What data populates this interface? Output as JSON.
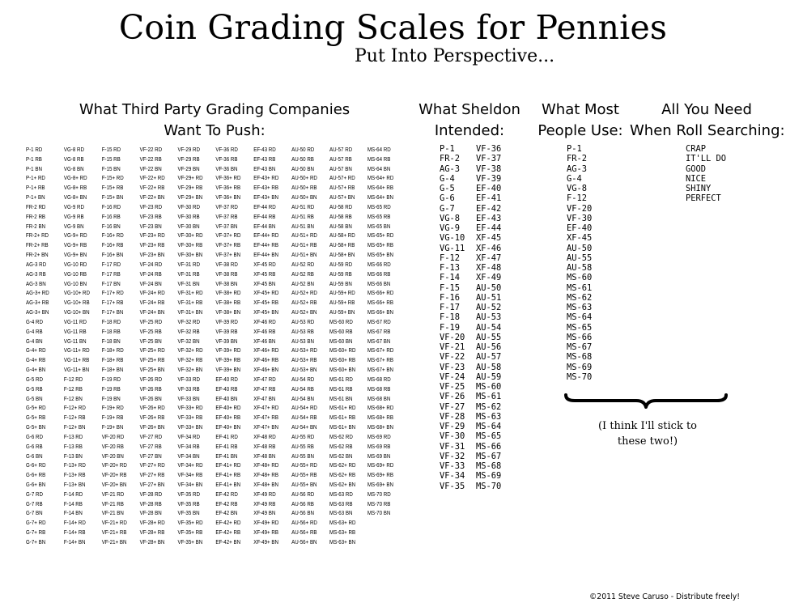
{
  "title": "Coin Grading Scales for Pennies",
  "subtitle": "Put Into Perspective...",
  "headings": {
    "tpg": [
      "What Third Party Grading Companies",
      "Want To Push:"
    ],
    "sheldon": [
      "What Sheldon",
      "Intended:"
    ],
    "most": [
      "What Most",
      "People Use:"
    ],
    "need": [
      "All You Need",
      "When Roll Searching:"
    ]
  },
  "tpg_columns": [
    [
      "P-1 RD",
      "P-1 RB",
      "P-1 BN",
      "P-1+ RD",
      "P-1+ RB",
      "P-1+ BN",
      "FR-2 RD",
      "FR-2 RB",
      "FR-2 BN",
      "FR-2+ RD",
      "FR-2+ RB",
      "FR-2+ BN",
      "AG-3 RD",
      "AG-3 RB",
      "AG-3 BN",
      "AG-3+ RD",
      "AG-3+ RB",
      "AG-3+ BN",
      "G-4 RD",
      "G-4 RB",
      "G-4 BN",
      "G-4+ RD",
      "G-4+ RB",
      "G-4+ BN",
      "G-5 RD",
      "G-5 RB",
      "G-5 BN",
      "G-5+ RD",
      "G-5+ RB",
      "G-5+ BN",
      "G-6 RD",
      "G-6 RB",
      "G-6 BN",
      "G-6+ RD",
      "G-6+ RB",
      "G-6+ BN",
      "G-7 RD",
      "G-7 RB",
      "G-7 BN",
      "G-7+ RD",
      "G-7+ RB",
      "G-7+ BN"
    ],
    [
      "VG-8 RD",
      "VG-8 RB",
      "VG-8 BN",
      "VG-8+ RD",
      "VG-8+ RB",
      "VG-8+ BN",
      "VG-9 RD",
      "VG-9 RB",
      "VG-9 BN",
      "VG-9+ RD",
      "VG-9+ RB",
      "VG-9+ BN",
      "VG-10 RD",
      "VG-10 RB",
      "VG-10 BN",
      "VG-10+ RD",
      "VG-10+ RB",
      "VG-10+ BN",
      "VG-11 RD",
      "VG-11 RB",
      "VG-11 BN",
      "VG-11+ RD",
      "VG-11+ RB",
      "VG-11+ BN",
      "F-12 RD",
      "F-12 RB",
      "F-12 BN",
      "F-12+ RD",
      "F-12+ RB",
      "F-12+ BN",
      "F-13 RD",
      "F-13 RB",
      "F-13 BN",
      "F-13+ RD",
      "F-13+ RB",
      "F-13+ BN",
      "F-14 RD",
      "F-14 RB",
      "F-14 BN",
      "F-14+ RD",
      "F-14+ RB",
      "F-14+ BN"
    ],
    [
      "F-15 RD",
      "F-15 RB",
      "F-15 BN",
      "F-15+ RD",
      "F-15+ RB",
      "F-15+ BN",
      "F-16 RD",
      "F-16 RB",
      "F-16 BN",
      "F-16+ RD",
      "F-16+ RB",
      "F-16+ BN",
      "F-17 RD",
      "F-17 RB",
      "F-17 BN",
      "F-17+ RD",
      "F-17+ RB",
      "F-17+ BN",
      "F-18 RD",
      "F-18 RB",
      "F-18 BN",
      "F-18+ RD",
      "F-18+ RB",
      "F-18+ BN",
      "F-19 RD",
      "F-19 RB",
      "F-19 BN",
      "F-19+ RD",
      "F-19+ RB",
      "F-19+ BN",
      "VF-20 RD",
      "VF-20 RB",
      "VF-20 BN",
      "VF-20+ RD",
      "VF-20+ RB",
      "VF-20+ BN",
      "VF-21 RD",
      "VF-21 RB",
      "VF-21 BN",
      "VF-21+ RD",
      "VF-21+ RB",
      "VF-21+ BN"
    ],
    [
      "VF-22 RD",
      "VF-22 RB",
      "VF-22 BN",
      "VF-22+ RD",
      "VF-22+ RB",
      "VF-22+ BN",
      "VF-23 RD",
      "VF-23 RB",
      "VF-23 BN",
      "VF-23+ RD",
      "VF-23+ RB",
      "VF-23+ BN",
      "VF-24 RD",
      "VF-24 RB",
      "VF-24 BN",
      "VF-24+ RD",
      "VF-24+ RB",
      "VF-24+ BN",
      "VF-25 RD",
      "VF-25 RB",
      "VF-25 BN",
      "VF-25+ RD",
      "VF-25+ RB",
      "VF-25+ BN",
      "VF-26 RD",
      "VF-26 RB",
      "VF-26 BN",
      "VF-26+ RD",
      "VF-26+ RB",
      "VF-26+ BN",
      "VF-27 RD",
      "VF-27 RB",
      "VF-27 BN",
      "VF-27+ RD",
      "VF-27+ RB",
      "VF-27+ BN",
      "VF-28 RD",
      "VF-28 RB",
      "VF-28 BN",
      "VF-28+ RD",
      "VF-28+ RB",
      "VF-28+ BN"
    ],
    [
      "VF-29 RD",
      "VF-29 RB",
      "VF-29 BN",
      "VF-29+ RD",
      "VF-29+ RB",
      "VF-29+ BN",
      "VF-30 RD",
      "VF-30 RB",
      "VF-30 BN",
      "VF-30+ RD",
      "VF-30+ RB",
      "VF-30+ BN",
      "VF-31 RD",
      "VF-31 RB",
      "VF-31 BN",
      "VF-31+ RD",
      "VF-31+ RB",
      "VF-31+ BN",
      "VF-32 RD",
      "VF-32 RB",
      "VF-32 BN",
      "VF-32+ RD",
      "VF-32+ RB",
      "VF-32+ BN",
      "VF-33 RD",
      "VF-33 RB",
      "VF-33 BN",
      "VF-33+ RD",
      "VF-33+ RB",
      "VF-33+ BN",
      "VF-34 RD",
      "VF-34 RB",
      "VF-34 BN",
      "VF-34+ RD",
      "VF-34+ RB",
      "VF-34+ BN",
      "VF-35 RD",
      "VF-35 RB",
      "VF-35 BN",
      "VF-35+ RD",
      "VF-35+ RB",
      "VF-35+ BN"
    ],
    [
      "VF-36 RD",
      "VF-36 RB",
      "VF-36 BN",
      "VF-36+ RD",
      "VF-36+ RB",
      "VF-36+ BN",
      "VF-37 RD",
      "VF-37 RB",
      "VF-37 BN",
      "VF-37+ RD",
      "VF-37+ RB",
      "VF-37+ BN",
      "VF-38 RD",
      "VF-38 RB",
      "VF-38 BN",
      "VF-38+ RD",
      "VF-38+ RB",
      "VF-38+ BN",
      "VF-39 RD",
      "VF-39 RB",
      "VF-39 BN",
      "VF-39+ RD",
      "VF-39+ RB",
      "VF-39+ BN",
      "EF-40 RD",
      "EF-40 RB",
      "EF-40 BN",
      "EF-40+ RD",
      "EF-40+ RB",
      "EF-40+ BN",
      "EF-41 RD",
      "EF-41 RB",
      "EF-41 BN",
      "EF-41+ RD",
      "EF-41+ RB",
      "EF-41+ BN",
      "EF-42 RD",
      "EF-42 RB",
      "EF-42 BN",
      "EF-42+ RD",
      "EF-42+ RB",
      "EF-42+ BN"
    ],
    [
      "EF-43 RD",
      "EF-43 RB",
      "EF-43 BN",
      "EF-43+ RD",
      "EF-43+ RB",
      "EF-43+ BN",
      "EF-44 RD",
      "EF-44 RB",
      "EF-44 BN",
      "EF-44+ RD",
      "EF-44+ RB",
      "EF-44+ BN",
      "XF-45 RD",
      "XF-45 RB",
      "XF-45 BN",
      "XF-45+ RD",
      "XF-45+ RB",
      "XF-45+ BN",
      "XF-46 RD",
      "XF-46 RB",
      "XF-46 BN",
      "XF-46+ RD",
      "XF-46+ RB",
      "XF-46+ BN",
      "XF-47 RD",
      "XF-47 RB",
      "XF-47 BN",
      "XF-47+ RD",
      "XF-47+ RB",
      "XF-47+ BN",
      "XF-48 RD",
      "XF-48 RB",
      "XF-48 BN",
      "XF-48+ RD",
      "XF-48+ RB",
      "XF-48+ BN",
      "XF-49 RD",
      "XF-49 RB",
      "XF-49 BN",
      "XF-49+ RD",
      "XF-49+ RB",
      "XF-49+ BN"
    ],
    [
      "AU-50 RD",
      "AU-50 RB",
      "AU-50 BN",
      "AU-50+ RD",
      "AU-50+ RB",
      "AU-50+ BN",
      "AU-51 RD",
      "AU-51 RB",
      "AU-51 BN",
      "AU-51+ RD",
      "AU-51+ RB",
      "AU-51+ BN",
      "AU-52 RD",
      "AU-52 RB",
      "AU-52 BN",
      "AU-52+ RD",
      "AU-52+ RB",
      "AU-52+ BN",
      "AU-53 RD",
      "AU-53 RB",
      "AU-53 BN",
      "AU-53+ RD",
      "AU-53+ RB",
      "AU-53+ BN",
      "AU-54 RD",
      "AU-54 RB",
      "AU-54 BN",
      "AU-54+ RD",
      "AU-54+ RB",
      "AU-54+ BN",
      "AU-55 RD",
      "AU-55 RB",
      "AU-55 BN",
      "AU-55+ RD",
      "AU-55+ RB",
      "AU-55+ BN",
      "AU-56 RD",
      "AU-56 RB",
      "AU-56 BN",
      "AU-56+ RD",
      "AU-56+ RB",
      "AU-56+ BN"
    ],
    [
      "AU-57 RD",
      "AU-57 RB",
      "AU-57 BN",
      "AU-57+ RD",
      "AU-57+ RB",
      "AU-57+ BN",
      "AU-58 RD",
      "AU-58 RB",
      "AU-58 BN",
      "AU-58+ RD",
      "AU-58+ RB",
      "AU-58+ BN",
      "AU-59 RD",
      "AU-59 RB",
      "AU-59 BN",
      "AU-59+ RD",
      "AU-59+ RB",
      "AU-59+ BN",
      "MS-60 RD",
      "MS-60 RB",
      "MS-60 BN",
      "MS-60+ RD",
      "MS-60+ RB",
      "MS-60+ BN",
      "MS-61 RD",
      "MS-61 RB",
      "MS-61 BN",
      "MS-61+ RD",
      "MS-61+ RB",
      "MS-61+ BN",
      "MS-62 RD",
      "MS-62 RB",
      "MS-62 BN",
      "MS-62+ RD",
      "MS-62+ RB",
      "MS-62+ BN",
      "MS-63 RD",
      "MS-63 RB",
      "MS-63 BN",
      "MS-63+ RD",
      "MS-63+ RB",
      "MS-63+ BN"
    ],
    [
      "MS-64 RD",
      "MS-64 RB",
      "MS-64 BN",
      "MS-64+ RD",
      "MS-64+ RB",
      "MS-64+ BN",
      "MS-65 RD",
      "MS-65 RB",
      "MS-65 BN",
      "MS-65+ RD",
      "MS-65+ RB",
      "MS-65+ BN",
      "MS-66 RD",
      "MS-66 RB",
      "MS-66 BN",
      "MS-66+ RD",
      "MS-66+ RB",
      "MS-66+ BN",
      "MS-67 RD",
      "MS-67 RB",
      "MS-67 BN",
      "MS-67+ RD",
      "MS-67+ RB",
      "MS-67+ BN",
      "MS-68 RD",
      "MS-68 RB",
      "MS-68 BN",
      "MS-68+ RD",
      "MS-68+ RB",
      "MS-68+ BN",
      "MS-69 RD",
      "MS-69 RB",
      "MS-69 BN",
      "MS-69+ RD",
      "MS-69+ RB",
      "MS-69+ BN",
      "MS-70 RD",
      "MS-70 RB",
      "MS-70 BN"
    ]
  ],
  "sheldon_col1": [
    "P-1",
    "FR-2",
    "AG-3",
    "G-4",
    "G-5",
    "G-6",
    "G-7",
    "VG-8",
    "VG-9",
    "VG-10",
    "VG-11",
    "F-12",
    "F-13",
    "F-14",
    "F-15",
    "F-16",
    "F-17",
    "F-18",
    "F-19",
    "VF-20",
    "VF-21",
    "VF-22",
    "VF-23",
    "VF-24",
    "VF-25",
    "VF-26",
    "VF-27",
    "VF-28",
    "VF-29",
    "VF-30",
    "VF-31",
    "VF-32",
    "VF-33",
    "VF-34",
    "VF-35"
  ],
  "sheldon_col2": [
    "VF-36",
    "VF-37",
    "VF-38",
    "VF-39",
    "EF-40",
    "EF-41",
    "EF-42",
    "EF-43",
    "EF-44",
    "XF-45",
    "XF-46",
    "XF-47",
    "XF-48",
    "XF-49",
    "AU-50",
    "AU-51",
    "AU-52",
    "AU-53",
    "AU-54",
    "AU-55",
    "AU-56",
    "AU-57",
    "AU-58",
    "AU-59",
    "MS-60",
    "MS-61",
    "MS-62",
    "MS-63",
    "MS-64",
    "MS-65",
    "MS-66",
    "MS-67",
    "MS-68",
    "MS-69",
    "MS-70"
  ],
  "most_people": [
    "P-1",
    "FR-2",
    "AG-3",
    "G-4",
    "VG-8",
    "F-12",
    "VF-20",
    "VF-30",
    "EF-40",
    "XF-45",
    "AU-50",
    "AU-55",
    "AU-58",
    "MS-60",
    "MS-61",
    "MS-62",
    "MS-63",
    "MS-64",
    "MS-65",
    "MS-66",
    "MS-67",
    "MS-68",
    "MS-69",
    "MS-70"
  ],
  "roll_search": [
    "CRAP",
    "IT'LL DO",
    "GOOD",
    "NICE",
    "SHINY",
    "PERFECT"
  ],
  "note": [
    "(I think I'll stick to",
    "these two!)"
  ],
  "footer": "©2011 Steve Caruso - Distribute freely!"
}
